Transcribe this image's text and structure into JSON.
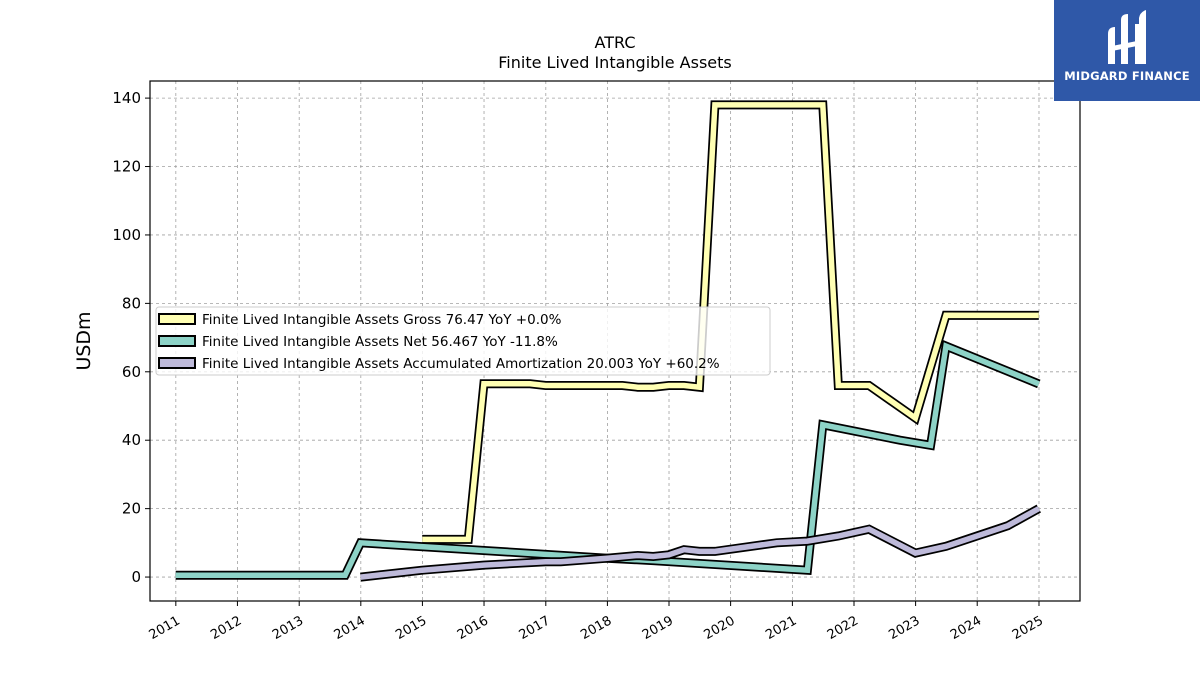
{
  "logo": {
    "text": "MIDGARD FINANCE",
    "icon": "mf-logo-icon",
    "bg_color": "#2f58a8"
  },
  "chart_data": {
    "type": "line",
    "title": "ATRC",
    "subtitle": "Finite Lived Intangible Assets",
    "ylabel": "USDm",
    "xlabel": "",
    "xlim": [
      "2010-08-01",
      "2025-09-01"
    ],
    "ylim": [
      -7,
      145
    ],
    "yticks": [
      0,
      20,
      40,
      60,
      80,
      100,
      120,
      140
    ],
    "xticks": [
      "2011",
      "2012",
      "2013",
      "2014",
      "2015",
      "2016",
      "2017",
      "2018",
      "2019",
      "2020",
      "2021",
      "2022",
      "2023",
      "2024",
      "2025"
    ],
    "grid": true,
    "legend_position": "center-left",
    "series": [
      {
        "name": "Finite Lived Intangible Assets Gross",
        "legend_label": "Finite Lived Intangible Assets Gross  76.47 YoY +0.0%",
        "color": "#ffffb3",
        "x": [
          "2014-12-31",
          "2015-09-30",
          "2015-12-31",
          "2016-09-30",
          "2016-12-31",
          "2017-09-30",
          "2018-03-31",
          "2018-06-30",
          "2018-09-30",
          "2018-12-31",
          "2019-03-31",
          "2019-06-30",
          "2019-09-30",
          "2020-09-30",
          "2021-06-30",
          "2021-09-30",
          "2022-03-31",
          "2022-12-31",
          "2023-06-30",
          "2024-06-30",
          "2024-12-31"
        ],
        "y": [
          11,
          11,
          56.5,
          56.5,
          56,
          56,
          56,
          55.5,
          55.5,
          56,
          56,
          55.5,
          138,
          138,
          138,
          56,
          56,
          46.5,
          76.5,
          76.47,
          76.47
        ]
      },
      {
        "name": "Finite Lived Intangible Assets Net",
        "legend_label": "Finite Lived Intangible Assets Net  56.467 YoY -11.8%",
        "color": "#8dd3c7",
        "x": [
          "2010-12-31",
          "2013-09-30",
          "2013-12-31",
          "2017-12-31",
          "2018-09-30",
          "2021-03-31",
          "2021-06-30",
          "2022-09-30",
          "2023-03-31",
          "2023-06-30",
          "2024-12-31"
        ],
        "y": [
          0.5,
          0.5,
          10,
          5.5,
          4.8,
          2,
          44.5,
          40,
          38.5,
          67.5,
          56.467
        ]
      },
      {
        "name": "Finite Lived Intangible Assets Accumulated Amortization",
        "legend_label": "Finite Lived Intangible Assets Accumulated Amortization  20.003 YoY +60.2%",
        "color": "#bebada",
        "x": [
          "2013-12-31",
          "2014-12-31",
          "2015-12-31",
          "2016-12-31",
          "2017-03-31",
          "2017-12-31",
          "2018-06-30",
          "2018-09-30",
          "2018-12-31",
          "2019-03-31",
          "2019-06-30",
          "2019-09-30",
          "2020-09-30",
          "2021-03-31",
          "2021-09-30",
          "2022-03-31",
          "2022-12-31",
          "2023-06-30",
          "2024-06-30",
          "2024-12-31"
        ],
        "y": [
          0,
          2,
          3.5,
          4.5,
          4.5,
          5.5,
          6.3,
          6.0,
          6.5,
          8.0,
          7.5,
          7.5,
          10,
          10.5,
          12,
          14,
          7,
          9,
          15,
          20.003
        ]
      }
    ]
  }
}
